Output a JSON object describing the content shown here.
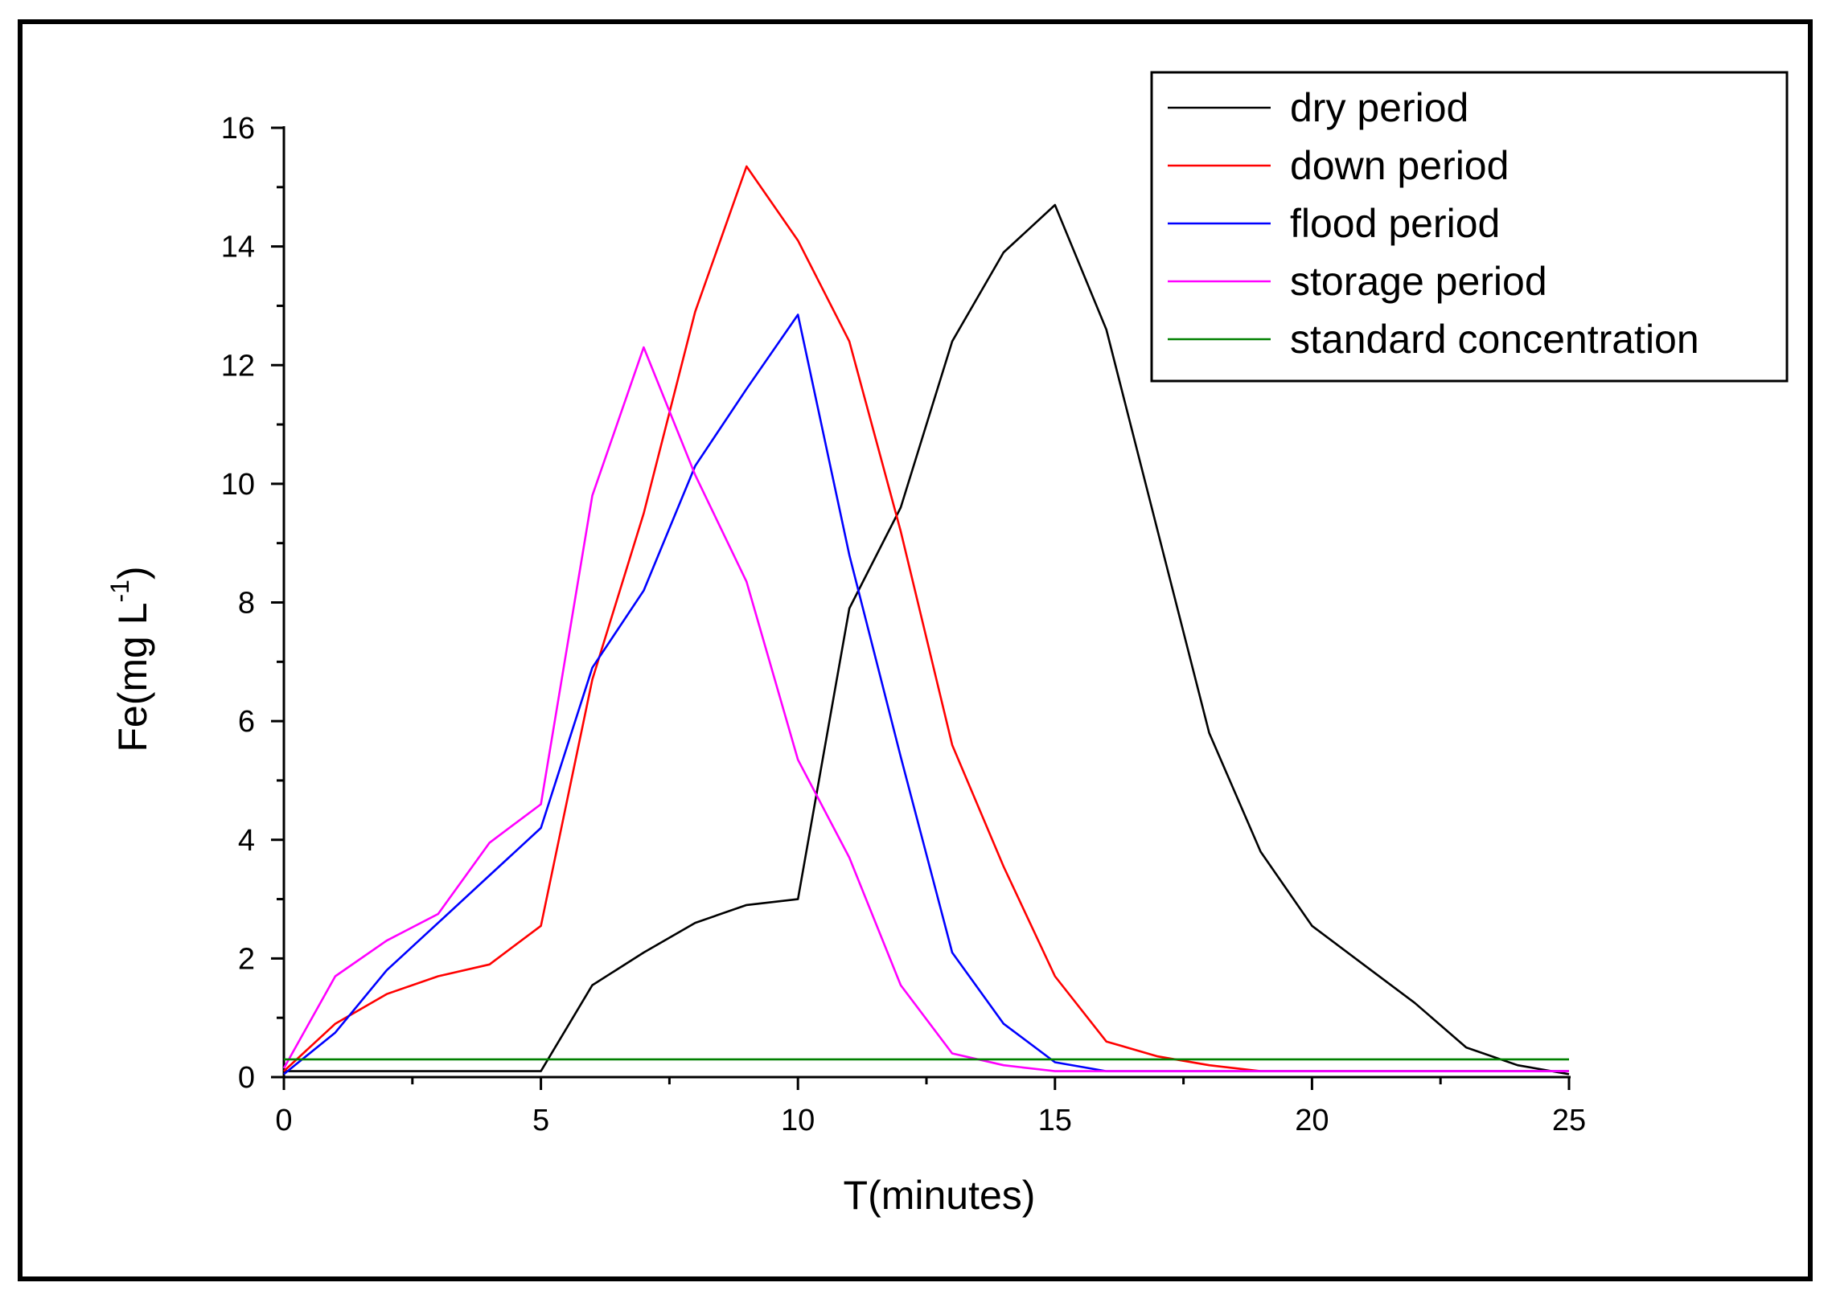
{
  "chart_data": {
    "type": "line",
    "title": "",
    "xlabel": "T(minutes)",
    "ylabel_main": "Fe(mg L",
    "ylabel_sup": "-1",
    "ylabel_close": ")",
    "xlim": [
      0,
      25
    ],
    "ylim": [
      0,
      16
    ],
    "xticks": [
      0,
      5,
      10,
      15,
      20,
      25
    ],
    "yticks": [
      0,
      2,
      4,
      6,
      8,
      10,
      12,
      14,
      16
    ],
    "grid": false,
    "legend_position": "top-right",
    "series": [
      {
        "name": "dry period",
        "color": "#000000",
        "x": [
          0,
          1,
          2,
          3,
          4,
          5,
          6,
          7,
          8,
          9,
          10,
          11,
          12,
          13,
          14,
          15,
          16,
          17,
          18,
          19,
          20,
          21,
          22,
          23,
          24,
          25
        ],
        "y": [
          0.1,
          0.1,
          0.1,
          0.1,
          0.1,
          0.1,
          1.55,
          2.1,
          2.6,
          2.9,
          3.0,
          7.9,
          9.6,
          12.4,
          13.9,
          14.7,
          12.6,
          9.2,
          5.8,
          3.8,
          2.55,
          1.9,
          1.25,
          0.5,
          0.2,
          0.05
        ]
      },
      {
        "name": "down period",
        "color": "#ff0000",
        "x": [
          0,
          1,
          2,
          3,
          4,
          5,
          6,
          7,
          8,
          9,
          10,
          11,
          12,
          13,
          14,
          15,
          16,
          17,
          18,
          19,
          20,
          21,
          22,
          23,
          24,
          25
        ],
        "y": [
          0.1,
          0.9,
          1.4,
          1.7,
          1.9,
          2.55,
          6.7,
          9.5,
          12.9,
          15.35,
          14.1,
          12.4,
          9.2,
          5.6,
          3.55,
          1.7,
          0.6,
          0.35,
          0.2,
          0.1,
          0.1,
          0.1,
          0.1,
          0.1,
          0.1,
          0.1
        ]
      },
      {
        "name": "flood period",
        "color": "#0000ff",
        "x": [
          0,
          1,
          2,
          3,
          4,
          5,
          6,
          7,
          8,
          9,
          10,
          11,
          12,
          13,
          14,
          15,
          16,
          17,
          18,
          19,
          20,
          21,
          22,
          23,
          24,
          25
        ],
        "y": [
          0.05,
          0.75,
          1.8,
          2.6,
          3.4,
          4.2,
          6.9,
          8.2,
          10.3,
          11.6,
          12.85,
          8.8,
          5.4,
          2.1,
          0.9,
          0.25,
          0.1,
          0.1,
          0.1,
          0.1,
          0.1,
          0.1,
          0.1,
          0.1,
          0.1,
          0.1
        ]
      },
      {
        "name": "storage period",
        "color": "#ff00ff",
        "x": [
          0,
          1,
          2,
          3,
          4,
          5,
          6,
          7,
          8,
          9,
          10,
          11,
          12,
          13,
          14,
          15,
          16,
          17,
          18,
          19,
          20,
          21,
          22,
          23,
          24,
          25
        ],
        "y": [
          0.15,
          1.7,
          2.3,
          2.75,
          3.95,
          4.6,
          9.8,
          12.3,
          10.15,
          8.35,
          5.35,
          3.7,
          1.55,
          0.4,
          0.2,
          0.1,
          0.1,
          0.1,
          0.1,
          0.1,
          0.1,
          0.1,
          0.1,
          0.1,
          0.1,
          0.1
        ]
      },
      {
        "name": "standard concentration",
        "color": "#008000",
        "x": [
          0,
          25
        ],
        "y": [
          0.3,
          0.3
        ]
      }
    ]
  }
}
